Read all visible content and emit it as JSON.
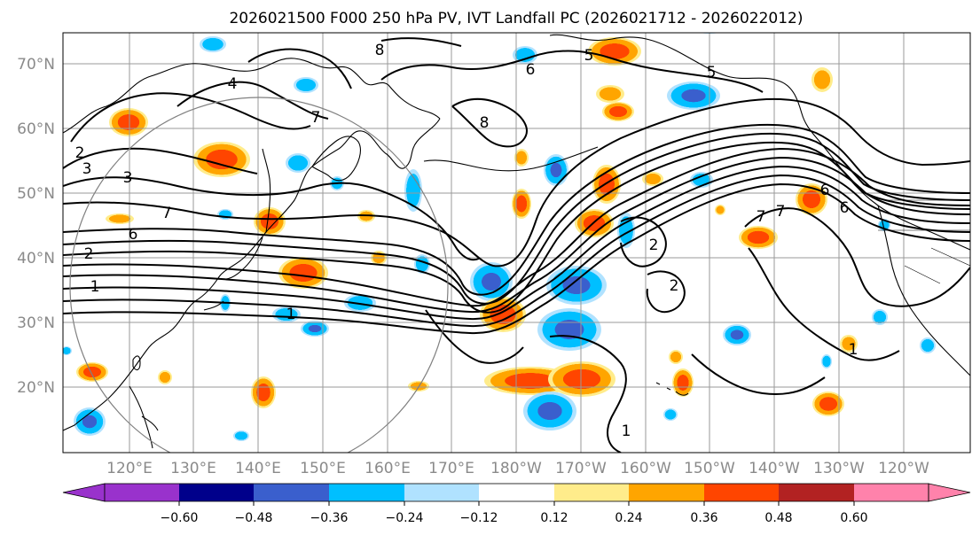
{
  "title": "2026021500 F000 250 hPa PV, IVT Landfall PC (2026021712 - 2026022012)",
  "map": {
    "lat_labels": [
      "70°N",
      "60°N",
      "50°N",
      "40°N",
      "30°N",
      "20°N"
    ],
    "lon_labels": [
      "120°E",
      "130°E",
      "140°E",
      "150°E",
      "160°E",
      "170°E",
      "180°W",
      "170°W",
      "160°W",
      "150°W",
      "140°W",
      "130°W",
      "120°W"
    ],
    "contour_labels": [
      "8",
      "6",
      "5",
      "5",
      "4",
      "7",
      "3",
      "3",
      "2",
      "7",
      "6",
      "2",
      "1",
      "1",
      "2",
      "2",
      "1",
      "8",
      "7",
      "7",
      "6",
      "6",
      "1"
    ]
  },
  "colorbar": {
    "colors": [
      "#9932cc",
      "#00008b",
      "#3a5fcd",
      "#00bfff",
      "#b0e2ff",
      "#ffffff",
      "#ffec8b",
      "#ffa500",
      "#ff4500",
      "#b22222",
      "#ff82ab"
    ],
    "tick_labels": [
      "−0.60",
      "−0.48",
      "−0.36",
      "−0.24",
      "−0.12",
      "0.12",
      "0.24",
      "0.36",
      "0.48",
      "0.60"
    ]
  }
}
